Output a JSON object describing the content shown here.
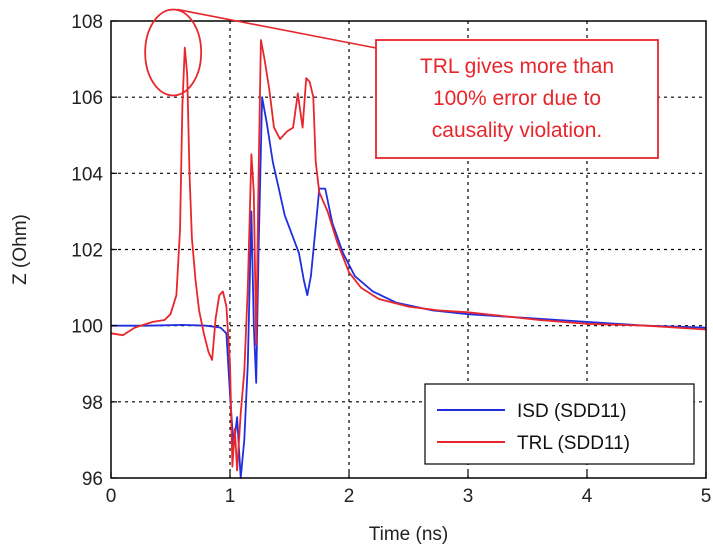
{
  "chart_data": {
    "type": "line",
    "title": "",
    "xlabel": "Time (ns)",
    "ylabel": "Z (Ohm)",
    "xlim": [
      0,
      5
    ],
    "ylim": [
      96,
      108
    ],
    "xticks": [
      "0",
      "1",
      "2",
      "3",
      "4",
      "5"
    ],
    "yticks": [
      "96",
      "98",
      "100",
      "102",
      "104",
      "106",
      "108"
    ],
    "grid": true,
    "legend_position": "bottom-right",
    "series": [
      {
        "name": "ISD (SDD11)",
        "color": "#1f2fe0",
        "points": [
          [
            0.0,
            100.0
          ],
          [
            0.3,
            100.0
          ],
          [
            0.6,
            100.02
          ],
          [
            0.8,
            100.0
          ],
          [
            0.92,
            99.95
          ],
          [
            0.97,
            99.8
          ],
          [
            1.0,
            98.2
          ],
          [
            1.03,
            96.8
          ],
          [
            1.06,
            97.6
          ],
          [
            1.09,
            96.0
          ],
          [
            1.12,
            97.0
          ],
          [
            1.15,
            99.0
          ],
          [
            1.18,
            103.0
          ],
          [
            1.2,
            100.0
          ],
          [
            1.22,
            98.5
          ],
          [
            1.24,
            102.0
          ],
          [
            1.27,
            106.0
          ],
          [
            1.31,
            105.3
          ],
          [
            1.36,
            104.3
          ],
          [
            1.41,
            103.6
          ],
          [
            1.46,
            102.9
          ],
          [
            1.52,
            102.4
          ],
          [
            1.58,
            101.9
          ],
          [
            1.62,
            101.2
          ],
          [
            1.65,
            100.8
          ],
          [
            1.68,
            101.3
          ],
          [
            1.72,
            102.6
          ],
          [
            1.75,
            103.6
          ],
          [
            1.8,
            103.6
          ],
          [
            1.86,
            102.7
          ],
          [
            1.95,
            101.9
          ],
          [
            2.05,
            101.3
          ],
          [
            2.2,
            100.9
          ],
          [
            2.4,
            100.6
          ],
          [
            2.7,
            100.4
          ],
          [
            3.0,
            100.3
          ],
          [
            3.5,
            100.2
          ],
          [
            4.0,
            100.1
          ],
          [
            4.5,
            100.0
          ],
          [
            5.0,
            99.95
          ]
        ]
      },
      {
        "name": "TRL (SDD11)",
        "color": "#e8262b",
        "points": [
          [
            0.0,
            99.8
          ],
          [
            0.1,
            99.75
          ],
          [
            0.2,
            99.95
          ],
          [
            0.35,
            100.1
          ],
          [
            0.45,
            100.15
          ],
          [
            0.5,
            100.3
          ],
          [
            0.55,
            100.8
          ],
          [
            0.58,
            102.5
          ],
          [
            0.6,
            105.8
          ],
          [
            0.62,
            107.3
          ],
          [
            0.64,
            106.6
          ],
          [
            0.66,
            104.0
          ],
          [
            0.68,
            102.3
          ],
          [
            0.71,
            101.2
          ],
          [
            0.74,
            100.4
          ],
          [
            0.78,
            99.8
          ],
          [
            0.82,
            99.3
          ],
          [
            0.85,
            99.1
          ],
          [
            0.88,
            100.2
          ],
          [
            0.91,
            100.8
          ],
          [
            0.94,
            100.9
          ],
          [
            0.97,
            100.5
          ],
          [
            1.0,
            99.0
          ],
          [
            1.02,
            96.3
          ],
          [
            1.04,
            97.3
          ],
          [
            1.06,
            96.2
          ],
          [
            1.09,
            97.7
          ],
          [
            1.12,
            98.8
          ],
          [
            1.15,
            101.0
          ],
          [
            1.18,
            104.5
          ],
          [
            1.2,
            103.5
          ],
          [
            1.22,
            99.5
          ],
          [
            1.24,
            104.0
          ],
          [
            1.26,
            107.5
          ],
          [
            1.29,
            107.0
          ],
          [
            1.33,
            106.2
          ],
          [
            1.37,
            105.2
          ],
          [
            1.42,
            104.9
          ],
          [
            1.48,
            105.1
          ],
          [
            1.53,
            105.2
          ],
          [
            1.57,
            106.1
          ],
          [
            1.61,
            105.2
          ],
          [
            1.64,
            106.5
          ],
          [
            1.67,
            106.4
          ],
          [
            1.7,
            106.0
          ],
          [
            1.72,
            104.3
          ],
          [
            1.75,
            103.5
          ],
          [
            1.82,
            103.0
          ],
          [
            1.9,
            102.2
          ],
          [
            2.0,
            101.4
          ],
          [
            2.1,
            101.0
          ],
          [
            2.25,
            100.7
          ],
          [
            2.5,
            100.5
          ],
          [
            2.75,
            100.4
          ],
          [
            3.0,
            100.35
          ],
          [
            3.3,
            100.25
          ],
          [
            3.6,
            100.15
          ],
          [
            4.0,
            100.05
          ],
          [
            4.5,
            100.0
          ],
          [
            5.0,
            99.9
          ]
        ]
      }
    ],
    "annotation": {
      "lines": [
        "TRL gives more than",
        "100% error due to",
        "causality violation."
      ],
      "color": "#e8262b",
      "target": [
        0.64,
        107.2
      ]
    }
  }
}
